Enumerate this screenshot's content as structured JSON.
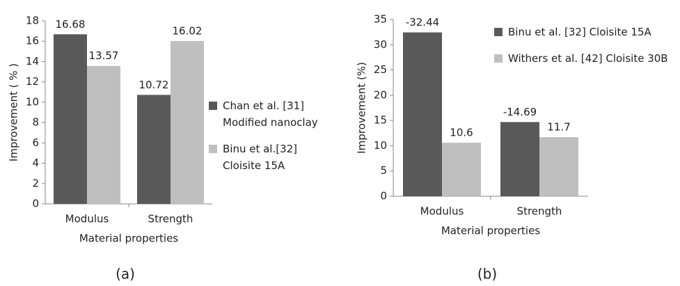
{
  "chart_data": [
    {
      "type": "bar",
      "caption": "(a)",
      "x_label": "Material properties",
      "y_label": "Improvement ( % )",
      "categories": [
        "Modulus",
        "Strength"
      ],
      "series": [
        {
          "name": "Chan et al. [31] Modified nanoclay",
          "color": "#595959",
          "values": [
            16.68,
            10.72
          ]
        },
        {
          "name": "Binu et al.[32] Cloisite 15A",
          "color": "#bfbfbf",
          "values": [
            13.57,
            16.02
          ]
        }
      ],
      "ylim": [
        0,
        18
      ],
      "yticks": [
        0,
        2,
        4,
        6,
        8,
        10,
        12,
        14,
        16,
        18
      ]
    },
    {
      "type": "bar",
      "caption": "(b)",
      "x_label": "Material properties",
      "y_label": "Improvement (%)",
      "categories": [
        "Modulus",
        "Strength"
      ],
      "series": [
        {
          "name": "Binu et al. [32] Cloisite 15A",
          "color": "#595959",
          "values": [
            32.44,
            14.69
          ],
          "value_labels": [
            "-32.44",
            "-14.69"
          ]
        },
        {
          "name": "Withers et al. [42] Cloisite 30B",
          "color": "#bfbfbf",
          "values": [
            10.6,
            11.7
          ]
        }
      ],
      "ylim": [
        0,
        35
      ],
      "yticks": [
        0,
        5,
        10,
        15,
        20,
        25,
        30,
        35
      ]
    }
  ]
}
